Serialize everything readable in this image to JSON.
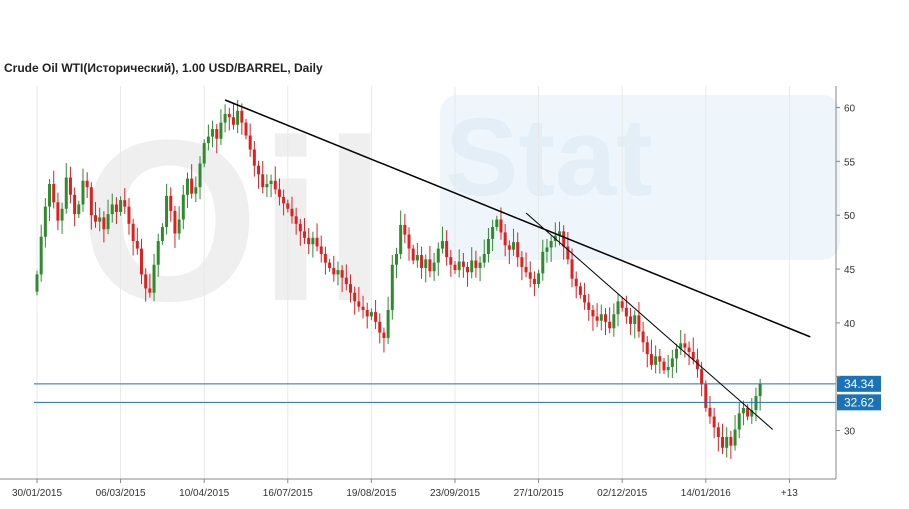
{
  "title": "Crude Oil WTI(Исторический), 1.00 USD/BARREL, Daily",
  "watermark": {
    "left": "Oil",
    "right": "Stat"
  },
  "colors": {
    "up": "#2e8b2e",
    "down": "#e02020",
    "level": "#1a73b6",
    "trend": "#000000",
    "grid": "#e8e8e8"
  },
  "chart_data": {
    "type": "candlestick",
    "title": "Crude Oil WTI(Исторический), 1.00 USD/BARREL, Daily",
    "ylim": [
      25.5,
      62
    ],
    "y_ticks": [
      30,
      35,
      40,
      45,
      50,
      55,
      60
    ],
    "y_tick_labels": [
      "30",
      "",
      "40",
      "45",
      "50",
      "55",
      "60"
    ],
    "x_tick_labels": [
      "30/01/2015",
      "06/03/2015",
      "10/04/2015",
      "16/07/2015",
      "19/08/2015",
      "23/09/2015",
      "27/10/2015",
      "02/12/2015",
      "14/01/2016",
      "+13"
    ],
    "x_tick_bars": [
      0,
      20,
      40,
      60,
      80,
      100,
      120,
      140,
      160,
      180
    ],
    "grid": "vertical",
    "price_levels": [
      {
        "value": 34.34,
        "label": "34.34"
      },
      {
        "value": 32.62,
        "label": "32.62"
      }
    ],
    "trendlines": [
      {
        "from": {
          "bar": 45,
          "price": 60.7
        },
        "to": {
          "bar": 185,
          "price": 38.7
        },
        "stroke": 1.5
      },
      {
        "from": {
          "bar": 117,
          "price": 50.2
        },
        "to": {
          "bar": 176,
          "price": 30.1
        },
        "stroke": 1
      }
    ],
    "closes": [
      44.5,
      48.0,
      50.8,
      52.9,
      51.2,
      49.5,
      50.6,
      53.5,
      51.9,
      50.1,
      51.0,
      53.2,
      52.6,
      50.0,
      49.4,
      49.8,
      48.7,
      50.1,
      51.0,
      50.3,
      51.4,
      50.8,
      49.2,
      47.6,
      46.9,
      44.5,
      43.2,
      42.8,
      45.4,
      47.6,
      48.9,
      51.8,
      50.4,
      48.3,
      49.6,
      51.9,
      53.4,
      52.0,
      52.6,
      54.8,
      56.7,
      57.3,
      58.0,
      57.1,
      58.6,
      59.4,
      59.1,
      58.4,
      59.7,
      58.6,
      57.4,
      56.1,
      54.6,
      53.8,
      52.6,
      52.9,
      53.2,
      52.4,
      51.7,
      51.1,
      50.6,
      49.9,
      49.2,
      48.5,
      47.9,
      47.3,
      47.9,
      47.1,
      46.4,
      45.6,
      45.1,
      44.5,
      44.9,
      44.2,
      43.6,
      42.8,
      42.0,
      41.5,
      41.2,
      40.6,
      41.0,
      40.1,
      39.1,
      38.6,
      41.2,
      45.4,
      46.4,
      49.1,
      48.2,
      46.9,
      45.8,
      46.3,
      45.1,
      45.9,
      44.8,
      45.6,
      46.9,
      47.6,
      46.1,
      45.4,
      44.9,
      45.7,
      45.2,
      44.7,
      45.8,
      45.1,
      45.6,
      46.4,
      47.8,
      48.9,
      49.6,
      48.4,
      47.2,
      46.8,
      47.5,
      46.1,
      45.2,
      44.7,
      44.1,
      43.6,
      44.6,
      46.6,
      47.0,
      47.6,
      48.1,
      48.5,
      47.1,
      45.9,
      44.1,
      43.4,
      42.6,
      41.9,
      41.2,
      40.6,
      40.2,
      40.8,
      40.1,
      39.5,
      40.8,
      42.0,
      41.4,
      40.6,
      39.9,
      40.7,
      39.2,
      38.2,
      37.1,
      36.1,
      36.9,
      36.4,
      35.6,
      35.9,
      36.7,
      37.6,
      38.1,
      37.7,
      37.3,
      36.6,
      35.7,
      34.3,
      32.1,
      31.3,
      30.3,
      29.4,
      28.4,
      29.4,
      28.6,
      30.1,
      31.6,
      32.1,
      31.3,
      31.9,
      33.2,
      34.34
    ]
  }
}
